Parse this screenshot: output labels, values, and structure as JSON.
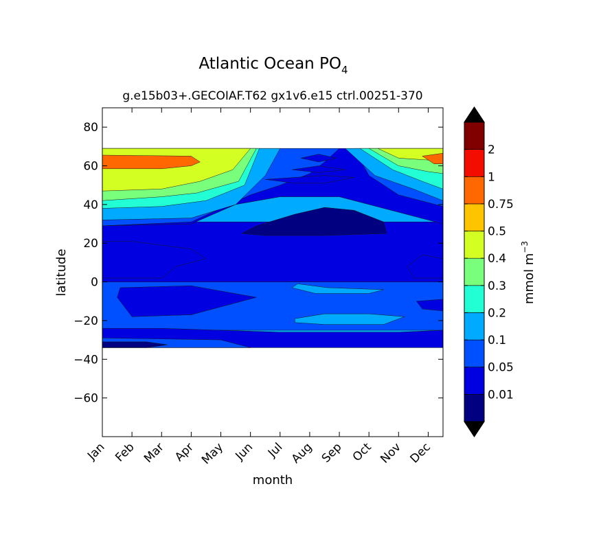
{
  "chart_data": {
    "type": "heatmap",
    "title_base": "Atlantic Ocean PO",
    "title_subscript": "4",
    "subtitle": "g.e15b03+.GECOIAF.T62 gx1v6.e15 ctrl.00251-370",
    "xlabel": "month",
    "ylabel": "latitude",
    "months": [
      "Jan",
      "Feb",
      "Mar",
      "Apr",
      "May",
      "Jun",
      "Jul",
      "Aug",
      "Sep",
      "Oct",
      "Nov",
      "Dec"
    ],
    "x_range": [
      1,
      12.5
    ],
    "ylim": [
      -80,
      90
    ],
    "yticks": [
      -60,
      -40,
      -20,
      0,
      20,
      40,
      60,
      80
    ],
    "ytick_labels": [
      "−60",
      "−40",
      "−20",
      "0",
      "20",
      "40",
      "60",
      "80"
    ],
    "data_lat_range": [
      -34,
      69
    ],
    "colorbar": {
      "label_base": "mmol m",
      "label_exponent": "−3",
      "levels": [
        0,
        0.01,
        0.05,
        0.1,
        0.2,
        0.3,
        0.4,
        0.5,
        0.75,
        1,
        2,
        3
      ],
      "tick_labels": [
        "0.01",
        "0.05",
        "0.1",
        "0.2",
        "0.3",
        "0.4",
        "0.5",
        "0.75",
        "1",
        "2"
      ],
      "colors": [
        "#000080",
        "#0000e0",
        "#0050ff",
        "#00aaff",
        "#23ffd4",
        "#7aff7d",
        "#d4ff23",
        "#ffc400",
        "#ff6700",
        "#f20d00",
        "#800000"
      ],
      "under_color": "#000000",
      "over_color": "#000000"
    },
    "regions": [
      {
        "name": "tropical-south-band",
        "level": 2,
        "points": [
          [
            1,
            0
          ],
          [
            12.5,
            0
          ],
          [
            12.5,
            -25
          ],
          [
            1,
            -25
          ]
        ]
      },
      {
        "name": "south-low-band",
        "level": 1,
        "points": [
          [
            1,
            -24
          ],
          [
            3,
            -24
          ],
          [
            5,
            -25
          ],
          [
            7,
            -26
          ],
          [
            9,
            -26
          ],
          [
            11,
            -26
          ],
          [
            12.5,
            -25
          ],
          [
            12.5,
            -34
          ],
          [
            1,
            -34
          ]
        ]
      },
      {
        "name": "south-subtropical-band",
        "level": 2,
        "points": [
          [
            1,
            -29
          ],
          [
            5,
            -30
          ],
          [
            6,
            -34
          ],
          [
            1,
            -34
          ]
        ]
      },
      {
        "name": "south-deep-patch",
        "level": 0.5,
        "points": [
          [
            1,
            -31
          ],
          [
            2.5,
            -31
          ],
          [
            3.2,
            -32.5
          ],
          [
            2.5,
            -34
          ],
          [
            1,
            -34
          ]
        ]
      },
      {
        "name": "south-green-patch",
        "level": 3,
        "points": [
          [
            7.5,
            -19
          ],
          [
            8.5,
            -16.5
          ],
          [
            10,
            -16.5
          ],
          [
            11.2,
            -18
          ],
          [
            10.5,
            -22
          ],
          [
            8.5,
            -22
          ],
          [
            7.5,
            -21
          ]
        ]
      },
      {
        "name": "south-mid-blue",
        "level": 1,
        "points": [
          [
            1.6,
            -3
          ],
          [
            4,
            -2
          ],
          [
            6.2,
            -8
          ],
          [
            4,
            -17
          ],
          [
            2,
            -18
          ],
          [
            1.5,
            -8
          ]
        ]
      },
      {
        "name": "equatorial-right-blue",
        "level": 1,
        "points": [
          [
            11.6,
            -10
          ],
          [
            12.5,
            -9
          ],
          [
            12.5,
            -15
          ],
          [
            11.8,
            -14
          ]
        ]
      },
      {
        "name": "equator-green-strip",
        "level": 3,
        "points": [
          [
            7.6,
            -1
          ],
          [
            8.6,
            -3
          ],
          [
            10.5,
            -4
          ],
          [
            10,
            -6
          ],
          [
            8.2,
            -6
          ],
          [
            7.4,
            -3
          ]
        ]
      },
      {
        "name": "north-deep-band",
        "level": 1.5,
        "points": [
          [
            1,
            0
          ],
          [
            12.5,
            0
          ],
          [
            12.5,
            31
          ],
          [
            1,
            31
          ]
        ]
      },
      {
        "name": "north-low-left",
        "level": 1,
        "points": [
          [
            1,
            2
          ],
          [
            3,
            2
          ],
          [
            3.5,
            8
          ],
          [
            4.5,
            12
          ],
          [
            4,
            17
          ],
          [
            2,
            21
          ],
          [
            1,
            21
          ]
        ]
      },
      {
        "name": "north-low-right",
        "level": 1,
        "points": [
          [
            11.5,
            2
          ],
          [
            12.5,
            2
          ],
          [
            12.5,
            12
          ],
          [
            11.8,
            14
          ],
          [
            11.3,
            8
          ]
        ]
      },
      {
        "name": "north-mid-band",
        "level": 1,
        "points": [
          [
            1,
            29
          ],
          [
            4,
            30
          ],
          [
            5.5,
            40
          ],
          [
            7,
            44
          ],
          [
            9,
            44
          ],
          [
            10.5,
            38
          ],
          [
            12.5,
            30
          ],
          [
            12.5,
            69
          ],
          [
            1,
            69
          ]
        ]
      },
      {
        "name": "north-deep-core",
        "level": 0.5,
        "points": [
          [
            5.7,
            25
          ],
          [
            6.2,
            29
          ],
          [
            7.5,
            35
          ],
          [
            8.5,
            38.5
          ],
          [
            9.5,
            37
          ],
          [
            10.5,
            31
          ],
          [
            10.6,
            25
          ],
          [
            8.5,
            24
          ],
          [
            6.5,
            24
          ]
        ]
      },
      {
        "name": "north-sub-upper",
        "level": 2,
        "points": [
          [
            1,
            29
          ],
          [
            4,
            31
          ],
          [
            6,
            45
          ],
          [
            7,
            50
          ],
          [
            8,
            56
          ],
          [
            8.5,
            62
          ],
          [
            9,
            69
          ],
          [
            1,
            69
          ]
        ]
      },
      {
        "name": "north-sub-upper-right",
        "level": 2,
        "points": [
          [
            9.5,
            69
          ],
          [
            10,
            55
          ],
          [
            11,
            45
          ],
          [
            12.5,
            39
          ],
          [
            12.5,
            69
          ]
        ]
      },
      {
        "name": "north-low-band-middle",
        "level": 1,
        "points": [
          [
            6.5,
            53
          ],
          [
            7.5,
            54
          ],
          [
            8.5,
            55
          ],
          [
            9.5,
            54
          ],
          [
            8.5,
            51
          ],
          [
            7.5,
            51
          ]
        ]
      },
      {
        "name": "north-low-patch-upper",
        "level": 1,
        "points": [
          [
            7.7,
            64
          ],
          [
            8.3,
            66
          ],
          [
            8.9,
            64
          ],
          [
            8.3,
            62
          ]
        ]
      },
      {
        "name": "north-low-patch-mid",
        "level": 1,
        "points": [
          [
            7.4,
            58
          ],
          [
            8.3,
            60
          ],
          [
            9.2,
            58
          ],
          [
            8.3,
            56.5
          ]
        ]
      },
      {
        "name": "north-green-left",
        "level": 3,
        "points": [
          [
            1,
            32
          ],
          [
            4,
            33
          ],
          [
            5.5,
            40
          ],
          [
            6.5,
            55
          ],
          [
            7,
            69
          ],
          [
            1,
            69
          ]
        ]
      },
      {
        "name": "north-green-right",
        "level": 3,
        "points": [
          [
            9.2,
            69
          ],
          [
            10.2,
            55
          ],
          [
            11.5,
            48
          ],
          [
            12.5,
            42
          ],
          [
            12.5,
            69
          ]
        ]
      },
      {
        "name": "north-lime-left",
        "level": 4,
        "points": [
          [
            1,
            38
          ],
          [
            3,
            39
          ],
          [
            4.5,
            42
          ],
          [
            5.8,
            50
          ],
          [
            6.3,
            69
          ],
          [
            1,
            69
          ]
        ]
      },
      {
        "name": "north-lime-right",
        "level": 4,
        "points": [
          [
            9.7,
            69
          ],
          [
            10.8,
            58
          ],
          [
            11.8,
            52
          ],
          [
            12.5,
            48
          ],
          [
            12.5,
            69
          ]
        ]
      },
      {
        "name": "north-yellow-left",
        "level": 5,
        "points": [
          [
            1,
            42
          ],
          [
            3,
            44
          ],
          [
            4.2,
            46
          ],
          [
            5.6,
            52
          ],
          [
            6.2,
            69
          ],
          [
            1,
            69
          ]
        ]
      },
      {
        "name": "north-yellow-right",
        "level": 5,
        "points": [
          [
            10,
            69
          ],
          [
            11,
            60
          ],
          [
            12,
            57
          ],
          [
            12.5,
            56
          ],
          [
            12.5,
            69
          ]
        ]
      },
      {
        "name": "north-orange-left",
        "level": 6,
        "points": [
          [
            1,
            47
          ],
          [
            3,
            48
          ],
          [
            4.3,
            52
          ],
          [
            5.4,
            58
          ],
          [
            6,
            69
          ],
          [
            1,
            69
          ]
        ]
      },
      {
        "name": "north-orange-right",
        "level": 6,
        "points": [
          [
            10.3,
            69
          ],
          [
            11,
            64
          ],
          [
            12,
            63
          ],
          [
            12.5,
            63
          ],
          [
            12.5,
            69
          ]
        ]
      },
      {
        "name": "north-red-left",
        "level": 8,
        "points": [
          [
            1,
            58.5
          ],
          [
            3,
            58.5
          ],
          [
            4,
            60
          ],
          [
            4.3,
            62
          ],
          [
            4,
            65
          ],
          [
            1,
            65.5
          ]
        ]
      },
      {
        "name": "north-red-right",
        "level": 8,
        "points": [
          [
            11.8,
            65
          ],
          [
            12.5,
            66.5
          ],
          [
            12.5,
            61
          ],
          [
            12.2,
            61
          ]
        ]
      }
    ]
  }
}
